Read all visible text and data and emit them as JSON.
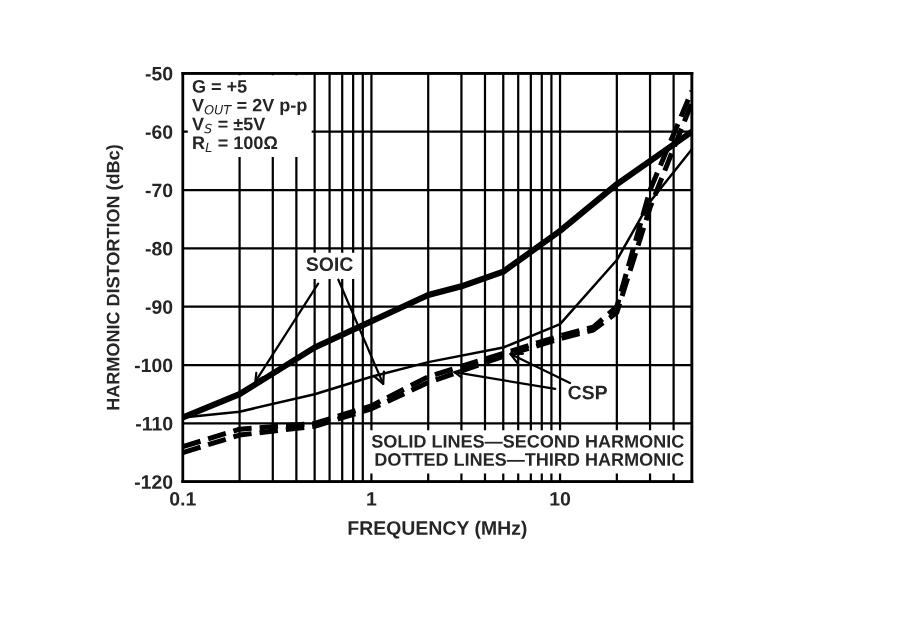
{
  "chart_data": {
    "type": "line",
    "xlabel": "FREQUENCY (MHz)",
    "ylabel": "HARMONIC DISTORTION (dBc)",
    "log": "x",
    "xlim": [
      0.1,
      50
    ],
    "xticks": [
      0.1,
      1,
      10
    ],
    "ylim": [
      -120,
      -50
    ],
    "yticks": [
      -120,
      -110,
      -100,
      -90,
      -80,
      -70,
      -60,
      -50
    ],
    "grid": true,
    "legend": false,
    "marker": "none",
    "series": [
      {
        "color": "#000000",
        "line_style": "solid",
        "x": [
          0.1,
          0.2,
          0.5,
          1,
          2,
          3,
          5,
          10,
          20,
          50
        ],
        "values": [
          -109,
          -105,
          -97,
          -92.5,
          -88,
          -86.5,
          -84,
          -77,
          -69,
          -60
        ]
      },
      {
        "color": "#000000",
        "line_style": "solid",
        "x": [
          0.1,
          0.2,
          0.5,
          1,
          2,
          5,
          10,
          20,
          30,
          50
        ],
        "values": [
          -109,
          -108,
          -105,
          -102,
          -99.5,
          -97,
          -93,
          -82,
          -72,
          -63
        ]
      },
      {
        "color": "#000000",
        "line_style": "dashed",
        "x": [
          0.1,
          0.2,
          0.5,
          1,
          2,
          5,
          10,
          15,
          20,
          30,
          50
        ],
        "values": [
          -114,
          -111,
          -110,
          -107,
          -102,
          -98,
          -95,
          -93.5,
          -90,
          -70,
          -53
        ]
      },
      {
        "color": "#000000",
        "line_style": "dashed",
        "x": [
          0.1,
          0.2,
          0.5,
          1,
          2,
          5,
          10,
          15,
          20,
          30,
          50
        ],
        "values": [
          -115,
          -112,
          -110.5,
          -107.5,
          -103,
          -98.5,
          -95.5,
          -94,
          -91,
          -73,
          -55
        ]
      }
    ],
    "annotations": [
      "G = +5\nV$_{OUT}$ = 2V p-p\nV$_{S}$ = ±5V\nR$_{L}$ = 100Ω",
      {
        "text": "SOIC",
        "x": 0.23,
        "y": -104
      },
      {
        "text": "CSP",
        "x": 2.5,
        "y": -101
      },
      "SOLID LINES—SECOND HARMONIC\nDOTTED LINES—THIRD HARMONIC"
    ]
  }
}
